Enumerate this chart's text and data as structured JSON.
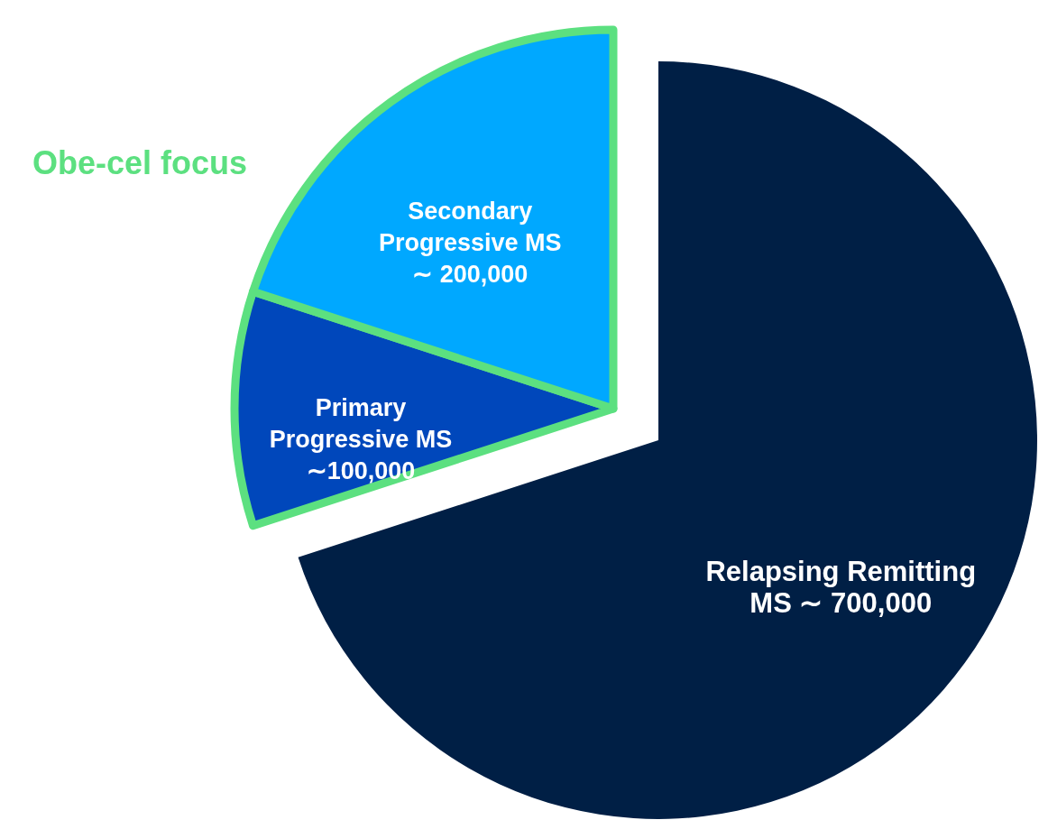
{
  "chart_data": {
    "type": "pie",
    "categories": [
      "Relapsing Remitting MS",
      "Primary Progressive MS",
      "Secondary Progressive MS"
    ],
    "values": [
      700000,
      100000,
      200000
    ],
    "value_labels": [
      "∼ 700,000",
      "∼100,000",
      "∼ 200,000"
    ],
    "colors": [
      "#001f45",
      "#0047bb",
      "#00a8ff"
    ],
    "annotations": [
      "Obe-cel focus"
    ]
  }
}
